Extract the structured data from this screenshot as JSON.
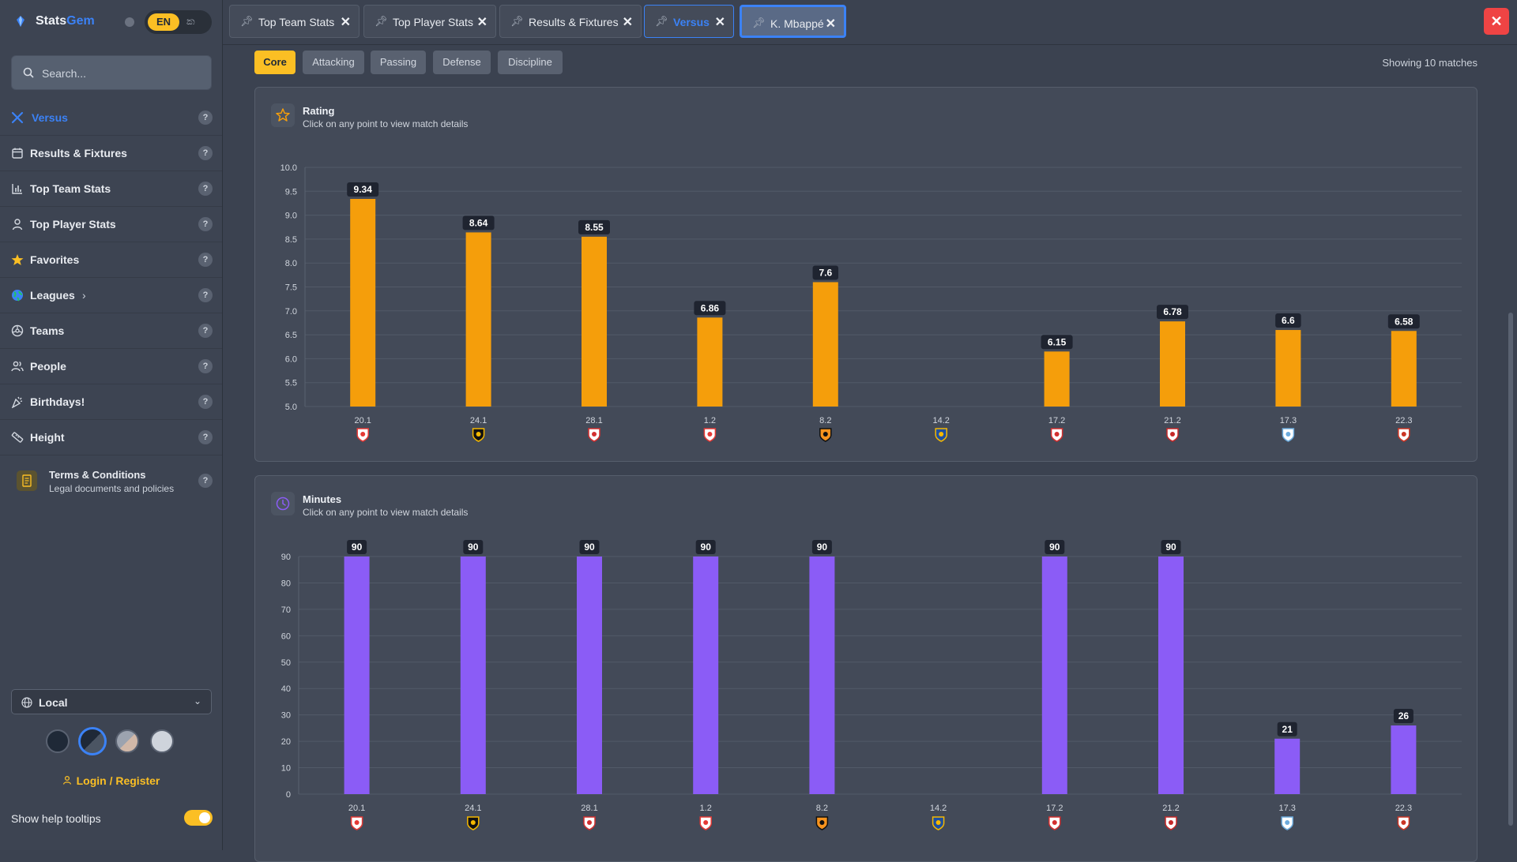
{
  "app": {
    "brand_main": "Stats",
    "brand_accent": "Gem",
    "language": "EN",
    "language_alt": "ක෉"
  },
  "search": {
    "placeholder": "Search..."
  },
  "sidebar": {
    "items": [
      {
        "label": "Versus",
        "icon": "versus-icon"
      },
      {
        "label": "Results & Fixtures",
        "icon": "calendar-icon"
      },
      {
        "label": "Top Team Stats",
        "icon": "bar-chart-icon"
      },
      {
        "label": "Top Player Stats",
        "icon": "person-icon"
      },
      {
        "label": "Favorites",
        "icon": "star-icon"
      },
      {
        "label": "Leagues",
        "icon": "globe-icon"
      },
      {
        "label": "Teams",
        "icon": "teams-icon"
      },
      {
        "label": "People",
        "icon": "people-icon"
      },
      {
        "label": "Birthdays!",
        "icon": "party-icon"
      },
      {
        "label": "Height",
        "icon": "ruler-icon"
      }
    ],
    "terms": {
      "title": "Terms & Conditions",
      "subtitle": "Legal documents and policies"
    },
    "timezone": "Local",
    "login": "Login / Register",
    "tooltips_label": "Show help tooltips",
    "help_glyph": "?",
    "chevron": "›",
    "select_chevron": "⌄"
  },
  "tabs": [
    {
      "label": "Top Team Stats"
    },
    {
      "label": "Top Player Stats"
    },
    {
      "label": "Results & Fixtures"
    },
    {
      "label": "Versus"
    },
    {
      "label": "K. Mbappé"
    }
  ],
  "filters": [
    "Core",
    "Attacking",
    "Passing",
    "Defense",
    "Discipline"
  ],
  "showing": "Showing 10 matches",
  "colors": {
    "accent": "#3b82f6",
    "rating_bar": "#f59e0b",
    "minutes_bar": "#8b5cf6",
    "yellow": "#fbbf24",
    "close": "#ef4444"
  },
  "charts": {
    "rating": {
      "title": "Rating",
      "subtitle": "Click on any point to view match details"
    },
    "minutes": {
      "title": "Minutes",
      "subtitle": "Click on any point to view match details"
    }
  },
  "chart_data": [
    {
      "type": "bar",
      "title": "Rating",
      "categories": [
        "20.1",
        "24.1",
        "28.1",
        "1.2",
        "8.2",
        "14.2",
        "17.2",
        "21.2",
        "17.3",
        "22.3"
      ],
      "values": [
        9.34,
        8.64,
        8.55,
        6.86,
        7.6,
        null,
        6.15,
        6.78,
        6.6,
        6.58
      ],
      "labels": [
        "9.34",
        "8.64",
        "8.55",
        "6.86",
        "7.6",
        "",
        "6.15",
        "6.78",
        "6.6",
        "6.58"
      ],
      "ylim": [
        5.0,
        10.0
      ],
      "yticks": [
        "5.0",
        "5.5",
        "6.0",
        "6.5",
        "7.0",
        "7.5",
        "8.0",
        "8.5",
        "9.0",
        "9.5",
        "10.0"
      ],
      "grid": true
    },
    {
      "type": "bar",
      "title": "Minutes",
      "categories": [
        "20.1",
        "24.1",
        "28.1",
        "1.2",
        "8.2",
        "14.2",
        "17.2",
        "21.2",
        "17.3",
        "22.3"
      ],
      "values": [
        90,
        90,
        90,
        90,
        90,
        null,
        90,
        90,
        21,
        26
      ],
      "labels": [
        "90",
        "90",
        "90",
        "90",
        "90",
        "",
        "90",
        "90",
        "21",
        "26"
      ],
      "ylim": [
        0,
        90
      ],
      "yticks": [
        "0",
        "10",
        "20",
        "30",
        "40",
        "50",
        "60",
        "70",
        "80",
        "90"
      ],
      "grid": true
    }
  ],
  "match_badges": [
    "crest-red-white",
    "crest-black-yellow",
    "crest-red-white-2",
    "crest-red-heart",
    "crest-orange-black",
    "crest-blue",
    "crest-red-white-3",
    "crest-red-small",
    "crest-lightblue",
    "crest-red-white-stripes"
  ]
}
